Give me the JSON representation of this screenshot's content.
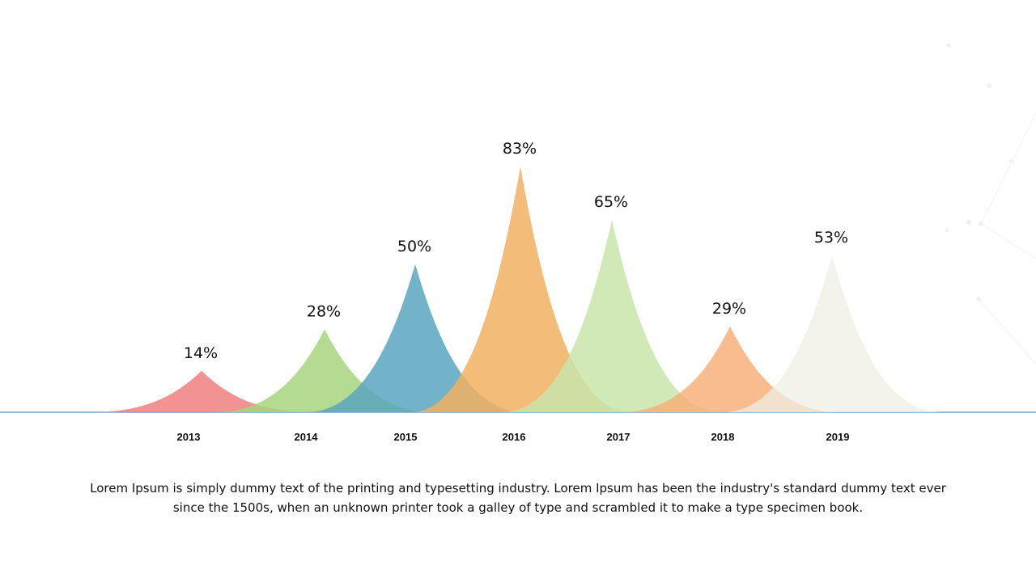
{
  "chart_data": {
    "type": "area",
    "categories": [
      "2013",
      "2014",
      "2015",
      "2016",
      "2017",
      "2018",
      "2019"
    ],
    "values": [
      14,
      28,
      50,
      83,
      65,
      29,
      53
    ],
    "value_labels": [
      "14%",
      "28%",
      "50%",
      "83%",
      "65%",
      "29%",
      "53%"
    ],
    "colors": [
      "#f07f7f",
      "#a8d47e",
      "#5aa6c0",
      "#f2b061",
      "#c8e5aa",
      "#f8b07a",
      "#efeee4"
    ],
    "baseline_color": "#5b8fc0",
    "ylim": [
      0,
      100
    ],
    "grid": false,
    "legend": "none"
  },
  "caption": "Lorem Ipsum is simply dummy text of the printing and typesetting industry. Lorem Ipsum has been the industry's standard dummy text ever since the 1500s, when an unknown printer took a galley of type and scrambled it to make a type specimen book."
}
